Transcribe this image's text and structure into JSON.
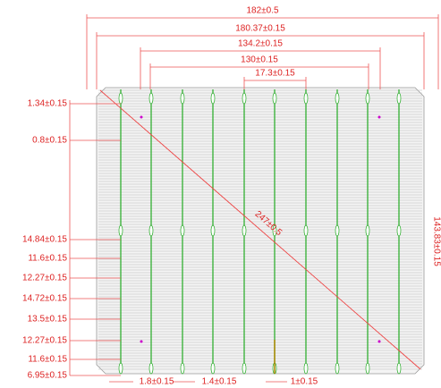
{
  "top_dimensions": [
    "182±0.5",
    "180.37±0.15",
    "134.2±0.15",
    "130±0.15",
    "17.3±0.15"
  ],
  "left_dimensions": [
    "1.34±0.15",
    "0.8±0.15",
    "14.84±0.15",
    "11.6±0.15",
    "12.27±0.15",
    "14.72±0.15",
    "13.5±0.15",
    "12.27±0.15",
    "11.6±0.15",
    "6.95±0.15"
  ],
  "bottom_dimensions": [
    "1.8±0.15",
    "1.4±0.15",
    "1±0.15"
  ],
  "diagonal_dimension": "247±0.5",
  "right_dimension": "143.83±0.15"
}
